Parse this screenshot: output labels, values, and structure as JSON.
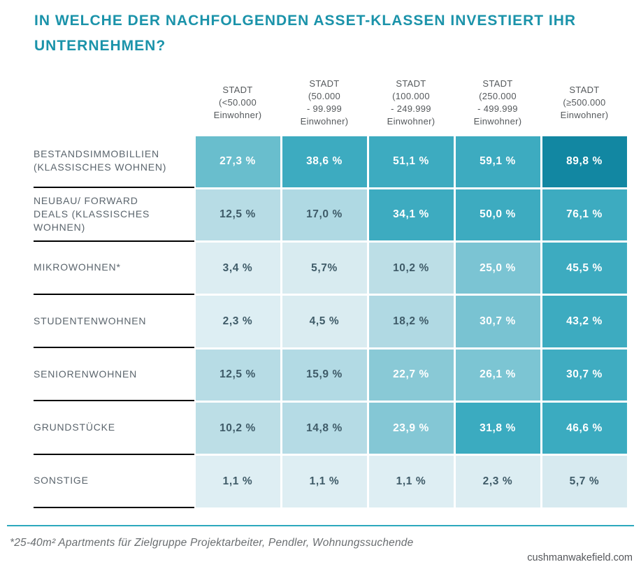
{
  "title": "IN WELCHE DER NACHFOLGENDEN ASSET-KLASSEN INVESTIERT IHR UNTERNEHMEN?",
  "colors": {
    "title_text": "#1B93AA",
    "header_text": "#55595C",
    "label_text": "#5B656D",
    "cell_text_dark": "#3F5B68",
    "cell_text_light": "#FFFFFF",
    "divider_line": "#000000",
    "footer_rule": "#2CA8BD",
    "footnote_text": "#6A6E71",
    "site_text": "#54565A"
  },
  "chart_data": {
    "type": "heatmap",
    "title": "IN WELCHE DER NACHFOLGENDEN ASSET-KLASSEN INVESTIERT IHR UNTERNEHMEN?",
    "legend_position": "none",
    "grid": false,
    "columns": [
      "STADT\n(<50.000\nEinwohner)",
      "STADT\n(50.000\n- 99.999\nEinwohner)",
      "STADT\n(100.000\n- 249.999\nEinwohner)",
      "STADT\n(250.000\n- 499.999\nEinwohner)",
      "STADT\n(≥500.000\nEinwohner)"
    ],
    "rows": [
      {
        "label": "BESTANDSIMMOBILLIEN\n(KLASSISCHES WOHNEN)",
        "values": [
          27.3,
          38.6,
          51.1,
          59.1,
          89.8
        ],
        "cells": [
          {
            "display": "27,3 %",
            "bg": "#69BECD",
            "fg": "light"
          },
          {
            "display": "38,6 %",
            "bg": "#3DABC0",
            "fg": "light"
          },
          {
            "display": "51,1 %",
            "bg": "#3DABC0",
            "fg": "light"
          },
          {
            "display": "59,1 %",
            "bg": "#3DABC0",
            "fg": "light"
          },
          {
            "display": "89,8 %",
            "bg": "#1287A2",
            "fg": "light"
          }
        ]
      },
      {
        "label": "NEUBAU/ FORWARD\nDEALS (KLASSISCHES\nWOHNEN)",
        "values": [
          12.5,
          17.0,
          34.1,
          50.0,
          76.1
        ],
        "cells": [
          {
            "display": "12,5 %",
            "bg": "#B7DCE5",
            "fg": "dark"
          },
          {
            "display": "17,0 %",
            "bg": "#AFD9E3",
            "fg": "dark"
          },
          {
            "display": "34,1 %",
            "bg": "#3DABC0",
            "fg": "light"
          },
          {
            "display": "50,0 %",
            "bg": "#3DABC0",
            "fg": "light"
          },
          {
            "display": "76,1 %",
            "bg": "#3DABC0",
            "fg": "light"
          }
        ]
      },
      {
        "label": "MIKROWOHNEN*",
        "values": [
          3.4,
          5.7,
          10.2,
          25.0,
          45.5
        ],
        "cells": [
          {
            "display": "3,4 %",
            "bg": "#DCEDF2",
            "fg": "dark"
          },
          {
            "display": "5,7%",
            "bg": "#D8EBF0",
            "fg": "dark"
          },
          {
            "display": "10,2 %",
            "bg": "#BCDEE6",
            "fg": "dark"
          },
          {
            "display": "25,0 %",
            "bg": "#7BC4D3",
            "fg": "light"
          },
          {
            "display": "45,5 %",
            "bg": "#3DABC0",
            "fg": "light"
          }
        ]
      },
      {
        "label": "STUDENTENWOHNEN",
        "values": [
          2.3,
          4.5,
          18.2,
          30.7,
          43.2
        ],
        "cells": [
          {
            "display": "2,3 %",
            "bg": "#DDEEF3",
            "fg": "dark"
          },
          {
            "display": "4,5 %",
            "bg": "#DAECF1",
            "fg": "dark"
          },
          {
            "display": "18,2 %",
            "bg": "#B0D9E3",
            "fg": "dark"
          },
          {
            "display": "30,7 %",
            "bg": "#79C3D2",
            "fg": "light"
          },
          {
            "display": "43,2 %",
            "bg": "#3DABC0",
            "fg": "light"
          }
        ]
      },
      {
        "label": "SENIORENWOHNEN",
        "values": [
          12.5,
          15.9,
          22.7,
          26.1,
          30.7
        ],
        "cells": [
          {
            "display": "12,5 %",
            "bg": "#B7DCE5",
            "fg": "dark"
          },
          {
            "display": "15,9 %",
            "bg": "#B2DAE4",
            "fg": "dark"
          },
          {
            "display": "22,7 %",
            "bg": "#89C9D6",
            "fg": "light"
          },
          {
            "display": "26,1 %",
            "bg": "#7CC5D3",
            "fg": "light"
          },
          {
            "display": "30,7 %",
            "bg": "#3FACC1",
            "fg": "light"
          }
        ]
      },
      {
        "label": "GRUNDSTÜCKE",
        "values": [
          10.2,
          14.8,
          23.9,
          31.8,
          46.6
        ],
        "cells": [
          {
            "display": "10,2 %",
            "bg": "#BCDEE6",
            "fg": "dark"
          },
          {
            "display": "14,8 %",
            "bg": "#B5DBE5",
            "fg": "dark"
          },
          {
            "display": "23,9 %",
            "bg": "#84C7D5",
            "fg": "light"
          },
          {
            "display": "31,8 %",
            "bg": "#3BABC0",
            "fg": "light"
          },
          {
            "display": "46,6 %",
            "bg": "#3BABC0",
            "fg": "light"
          }
        ]
      },
      {
        "label": "SONSTIGE",
        "values": [
          1.1,
          1.1,
          1.1,
          2.3,
          5.7
        ],
        "cells": [
          {
            "display": "1,1 %",
            "bg": "#DEEEF3",
            "fg": "dark"
          },
          {
            "display": "1,1 %",
            "bg": "#DEEEF3",
            "fg": "dark"
          },
          {
            "display": "1,1 %",
            "bg": "#DEEEF3",
            "fg": "dark"
          },
          {
            "display": "2,3 %",
            "bg": "#DCEDF2",
            "fg": "dark"
          },
          {
            "display": "5,7 %",
            "bg": "#D7EAF0",
            "fg": "dark"
          }
        ]
      }
    ]
  },
  "footer": {
    "note": "*25-40m² Apartments für Zielgruppe Projektarbeiter, Pendler, Wohnungssuchende",
    "site": "cushmanwakefield.com"
  }
}
